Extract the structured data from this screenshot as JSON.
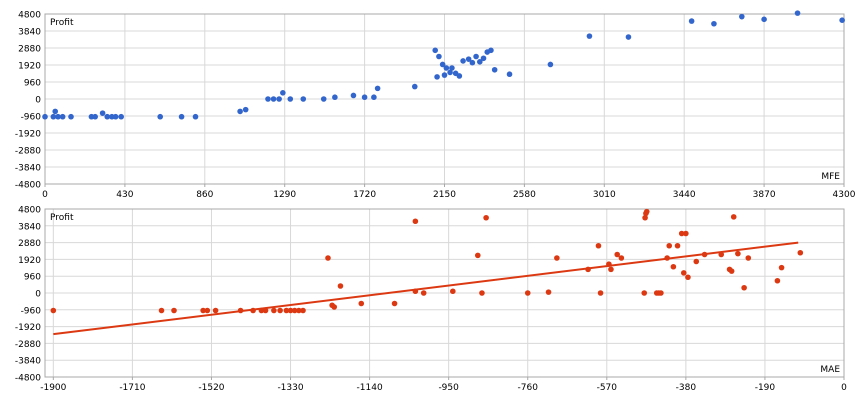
{
  "colors": {
    "grid": "#d8d8d8",
    "frame": "#a8a8a8",
    "text": "#000000",
    "mfe_points": "#3366cc",
    "mae_points": "#dc3912",
    "trendline": "#dc3912"
  },
  "chart_data": [
    {
      "type": "scatter",
      "title": "",
      "xlabel": "MFE",
      "ylabel": "Profit",
      "xlim": [
        0,
        4300
      ],
      "ylim": [
        -4800,
        4800
      ],
      "x_ticks": [
        0,
        430,
        860,
        1290,
        1720,
        2150,
        2580,
        3010,
        3440,
        3870,
        4300
      ],
      "y_ticks": [
        4800,
        3840,
        2880,
        1920,
        960,
        0,
        -960,
        -1920,
        -2880,
        -3840,
        -4800
      ],
      "grid": true,
      "points": [
        [
          0,
          -1000
        ],
        [
          45,
          -1000
        ],
        [
          55,
          -700
        ],
        [
          70,
          -1000
        ],
        [
          95,
          -1000
        ],
        [
          140,
          -1000
        ],
        [
          250,
          -1000
        ],
        [
          270,
          -1000
        ],
        [
          310,
          -800
        ],
        [
          335,
          -1000
        ],
        [
          360,
          -1000
        ],
        [
          380,
          -1000
        ],
        [
          410,
          -1000
        ],
        [
          620,
          -1000
        ],
        [
          735,
          -1000
        ],
        [
          810,
          -1000
        ],
        [
          1050,
          -700
        ],
        [
          1080,
          -600
        ],
        [
          1200,
          0
        ],
        [
          1230,
          0
        ],
        [
          1260,
          0
        ],
        [
          1280,
          350
        ],
        [
          1320,
          0
        ],
        [
          1390,
          0
        ],
        [
          1500,
          0
        ],
        [
          1560,
          100
        ],
        [
          1660,
          200
        ],
        [
          1720,
          100
        ],
        [
          1770,
          100
        ],
        [
          1790,
          600
        ],
        [
          1990,
          700
        ],
        [
          2100,
          2750
        ],
        [
          2110,
          1250
        ],
        [
          2120,
          2400
        ],
        [
          2140,
          1950
        ],
        [
          2150,
          1350
        ],
        [
          2160,
          1750
        ],
        [
          2180,
          1500
        ],
        [
          2190,
          1750
        ],
        [
          2210,
          1450
        ],
        [
          2230,
          1300
        ],
        [
          2250,
          2150
        ],
        [
          2280,
          2250
        ],
        [
          2300,
          2050
        ],
        [
          2320,
          2400
        ],
        [
          2340,
          2100
        ],
        [
          2360,
          2300
        ],
        [
          2380,
          2650
        ],
        [
          2400,
          2750
        ],
        [
          2420,
          1650
        ],
        [
          2500,
          1400
        ],
        [
          2720,
          1950
        ],
        [
          2930,
          3550
        ],
        [
          3140,
          3500
        ],
        [
          3480,
          4400
        ],
        [
          3600,
          4250
        ],
        [
          3750,
          4650
        ],
        [
          3870,
          4500
        ],
        [
          4050,
          4850
        ],
        [
          4290,
          4450
        ]
      ]
    },
    {
      "type": "scatter",
      "title": "",
      "xlabel": "MAE",
      "ylabel": "Profit",
      "xlim": [
        -1920,
        0
      ],
      "ylim": [
        -4800,
        4800
      ],
      "x_ticks": [
        -1900,
        -1710,
        -1520,
        -1330,
        -1140,
        -950,
        -760,
        -570,
        -380,
        -190,
        0
      ],
      "y_ticks": [
        4800,
        3840,
        2880,
        1920,
        960,
        0,
        -960,
        -1920,
        -2880,
        -3840,
        -4800
      ],
      "grid": true,
      "trendline": {
        "x": [
          -1900,
          -110
        ],
        "y": [
          -2350,
          2880
        ]
      },
      "points": [
        [
          -1900,
          -1000
        ],
        [
          -1640,
          -1000
        ],
        [
          -1610,
          -1000
        ],
        [
          -1540,
          -1000
        ],
        [
          -1530,
          -1000
        ],
        [
          -1510,
          -1000
        ],
        [
          -1450,
          -1000
        ],
        [
          -1420,
          -1000
        ],
        [
          -1400,
          -1000
        ],
        [
          -1390,
          -1000
        ],
        [
          -1370,
          -1000
        ],
        [
          -1355,
          -1000
        ],
        [
          -1340,
          -1000
        ],
        [
          -1330,
          -1000
        ],
        [
          -1320,
          -1000
        ],
        [
          -1310,
          -1000
        ],
        [
          -1300,
          -1000
        ],
        [
          -1240,
          2000
        ],
        [
          -1230,
          -700
        ],
        [
          -1225,
          -800
        ],
        [
          -1210,
          400
        ],
        [
          -1160,
          -600
        ],
        [
          -1080,
          -600
        ],
        [
          -1030,
          4100
        ],
        [
          -1030,
          100
        ],
        [
          -1010,
          0
        ],
        [
          -940,
          100
        ],
        [
          -880,
          2150
        ],
        [
          -870,
          0
        ],
        [
          -860,
          4300
        ],
        [
          -760,
          0
        ],
        [
          -710,
          50
        ],
        [
          -690,
          2000
        ],
        [
          -615,
          1350
        ],
        [
          -590,
          2700
        ],
        [
          -585,
          0
        ],
        [
          -565,
          1650
        ],
        [
          -560,
          1350
        ],
        [
          -545,
          2200
        ],
        [
          -535,
          2000
        ],
        [
          -480,
          0
        ],
        [
          -478,
          4300
        ],
        [
          -476,
          4550
        ],
        [
          -474,
          4650
        ],
        [
          -450,
          0
        ],
        [
          -445,
          0
        ],
        [
          -440,
          0
        ],
        [
          -425,
          2000
        ],
        [
          -420,
          2700
        ],
        [
          -410,
          1500
        ],
        [
          -400,
          2700
        ],
        [
          -390,
          3400
        ],
        [
          -385,
          1150
        ],
        [
          -380,
          3400
        ],
        [
          -375,
          900
        ],
        [
          -355,
          1800
        ],
        [
          -335,
          2200
        ],
        [
          -295,
          2200
        ],
        [
          -275,
          1350
        ],
        [
          -270,
          1250
        ],
        [
          -265,
          4350
        ],
        [
          -255,
          2250
        ],
        [
          -240,
          300
        ],
        [
          -230,
          2000
        ],
        [
          -160,
          700
        ],
        [
          -150,
          1450
        ],
        [
          -105,
          2300
        ]
      ]
    }
  ],
  "charts": [
    {
      "ylabel": "Profit",
      "xlabel": "MFE",
      "y_labels": [
        "4800",
        "3840",
        "2880",
        "1920",
        "960",
        "0",
        "-960",
        "-1920",
        "-2880",
        "-3840",
        "-4800"
      ],
      "x_labels": [
        "0",
        "430",
        "860",
        "1290",
        "1720",
        "2150",
        "2580",
        "3010",
        "3440",
        "3870",
        "4300"
      ]
    },
    {
      "ylabel": "Profit",
      "xlabel": "MAE",
      "y_labels": [
        "4800",
        "3840",
        "2880",
        "1920",
        "960",
        "0",
        "-960",
        "-1920",
        "-2880",
        "-3840",
        "-4800"
      ],
      "x_labels": [
        "-1900",
        "-1710",
        "-1520",
        "-1330",
        "-1140",
        "-950",
        "-760",
        "-570",
        "-380",
        "-190",
        "0"
      ]
    }
  ]
}
